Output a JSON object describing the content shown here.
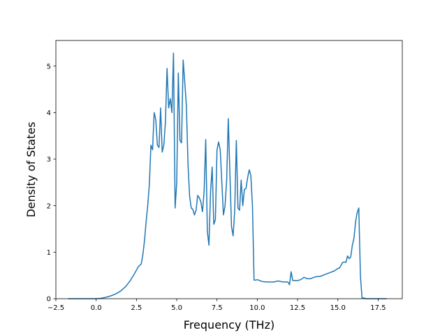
{
  "chart_data": {
    "type": "line",
    "title": "",
    "xlabel": "Frequency (THz)",
    "ylabel": "Density of States",
    "xlim": [
      -2.5,
      19.0
    ],
    "ylim": [
      0,
      5.55
    ],
    "grid": false,
    "legend": "none",
    "xticks": [
      -2.5,
      0.0,
      2.5,
      5.0,
      7.5,
      10.0,
      12.5,
      15.0,
      17.5
    ],
    "xtick_labels": [
      "−2.5",
      "0.0",
      "2.5",
      "5.0",
      "7.5",
      "10.0",
      "12.5",
      "15.0",
      "17.5"
    ],
    "yticks": [
      0,
      1,
      2,
      3,
      4,
      5
    ],
    "ytick_labels": [
      "0",
      "1",
      "2",
      "3",
      "4",
      "5"
    ],
    "series": [
      {
        "color": "#1f77b4",
        "x": [
          -1.7,
          -1.0,
          -0.5,
          0.0,
          0.3,
          0.6,
          0.9,
          1.2,
          1.5,
          1.8,
          2.1,
          2.4,
          2.6,
          2.8,
          2.9,
          3.0,
          3.1,
          3.2,
          3.3,
          3.4,
          3.5,
          3.6,
          3.7,
          3.8,
          3.9,
          4.0,
          4.1,
          4.2,
          4.3,
          4.4,
          4.5,
          4.6,
          4.7,
          4.8,
          4.9,
          5.0,
          5.1,
          5.2,
          5.3,
          5.4,
          5.5,
          5.6,
          5.7,
          5.8,
          5.9,
          6.0,
          6.1,
          6.2,
          6.3,
          6.4,
          6.5,
          6.6,
          6.7,
          6.8,
          6.9,
          7.0,
          7.1,
          7.2,
          7.3,
          7.4,
          7.5,
          7.6,
          7.7,
          7.8,
          7.9,
          8.0,
          8.1,
          8.2,
          8.3,
          8.4,
          8.5,
          8.6,
          8.7,
          8.8,
          8.9,
          9.0,
          9.1,
          9.2,
          9.3,
          9.4,
          9.5,
          9.6,
          9.7,
          9.8,
          9.9,
          10.0,
          10.3,
          10.6,
          11.0,
          11.3,
          11.6,
          11.9,
          12.0,
          12.1,
          12.2,
          12.5,
          12.7,
          12.9,
          13.1,
          13.3,
          13.6,
          13.9,
          14.2,
          14.5,
          14.8,
          15.0,
          15.1,
          15.2,
          15.3,
          15.4,
          15.5,
          15.6,
          15.7,
          15.8,
          15.9,
          16.0,
          16.1,
          16.2,
          16.3,
          16.4,
          16.5,
          16.8,
          17.3,
          18.0
        ],
        "y": [
          0.0,
          0.0,
          0.0,
          0.0,
          0.01,
          0.03,
          0.06,
          0.1,
          0.16,
          0.25,
          0.38,
          0.55,
          0.68,
          0.75,
          0.95,
          1.25,
          1.65,
          2.0,
          2.45,
          3.3,
          3.2,
          4.0,
          3.85,
          3.3,
          3.25,
          4.1,
          3.15,
          3.3,
          3.8,
          4.95,
          4.1,
          4.3,
          4.0,
          5.28,
          1.95,
          2.5,
          4.85,
          3.4,
          3.35,
          5.13,
          4.65,
          4.15,
          2.9,
          2.2,
          1.95,
          1.92,
          1.8,
          1.9,
          2.22,
          2.17,
          2.08,
          1.87,
          2.3,
          3.42,
          1.45,
          1.15,
          2.3,
          2.83,
          1.6,
          1.7,
          3.2,
          3.37,
          3.2,
          2.5,
          1.8,
          2.0,
          2.55,
          3.87,
          2.7,
          1.55,
          1.35,
          1.9,
          3.4,
          1.95,
          1.9,
          2.55,
          2.0,
          2.35,
          2.37,
          2.6,
          2.77,
          2.65,
          2.0,
          0.4,
          0.4,
          0.41,
          0.37,
          0.36,
          0.36,
          0.38,
          0.36,
          0.36,
          0.3,
          0.58,
          0.39,
          0.39,
          0.41,
          0.46,
          0.43,
          0.43,
          0.47,
          0.48,
          0.52,
          0.56,
          0.6,
          0.65,
          0.66,
          0.72,
          0.78,
          0.79,
          0.78,
          0.92,
          0.86,
          0.9,
          1.15,
          1.3,
          1.65,
          1.85,
          1.95,
          0.5,
          0.02,
          0.0,
          0.0,
          0.0
        ]
      }
    ]
  }
}
